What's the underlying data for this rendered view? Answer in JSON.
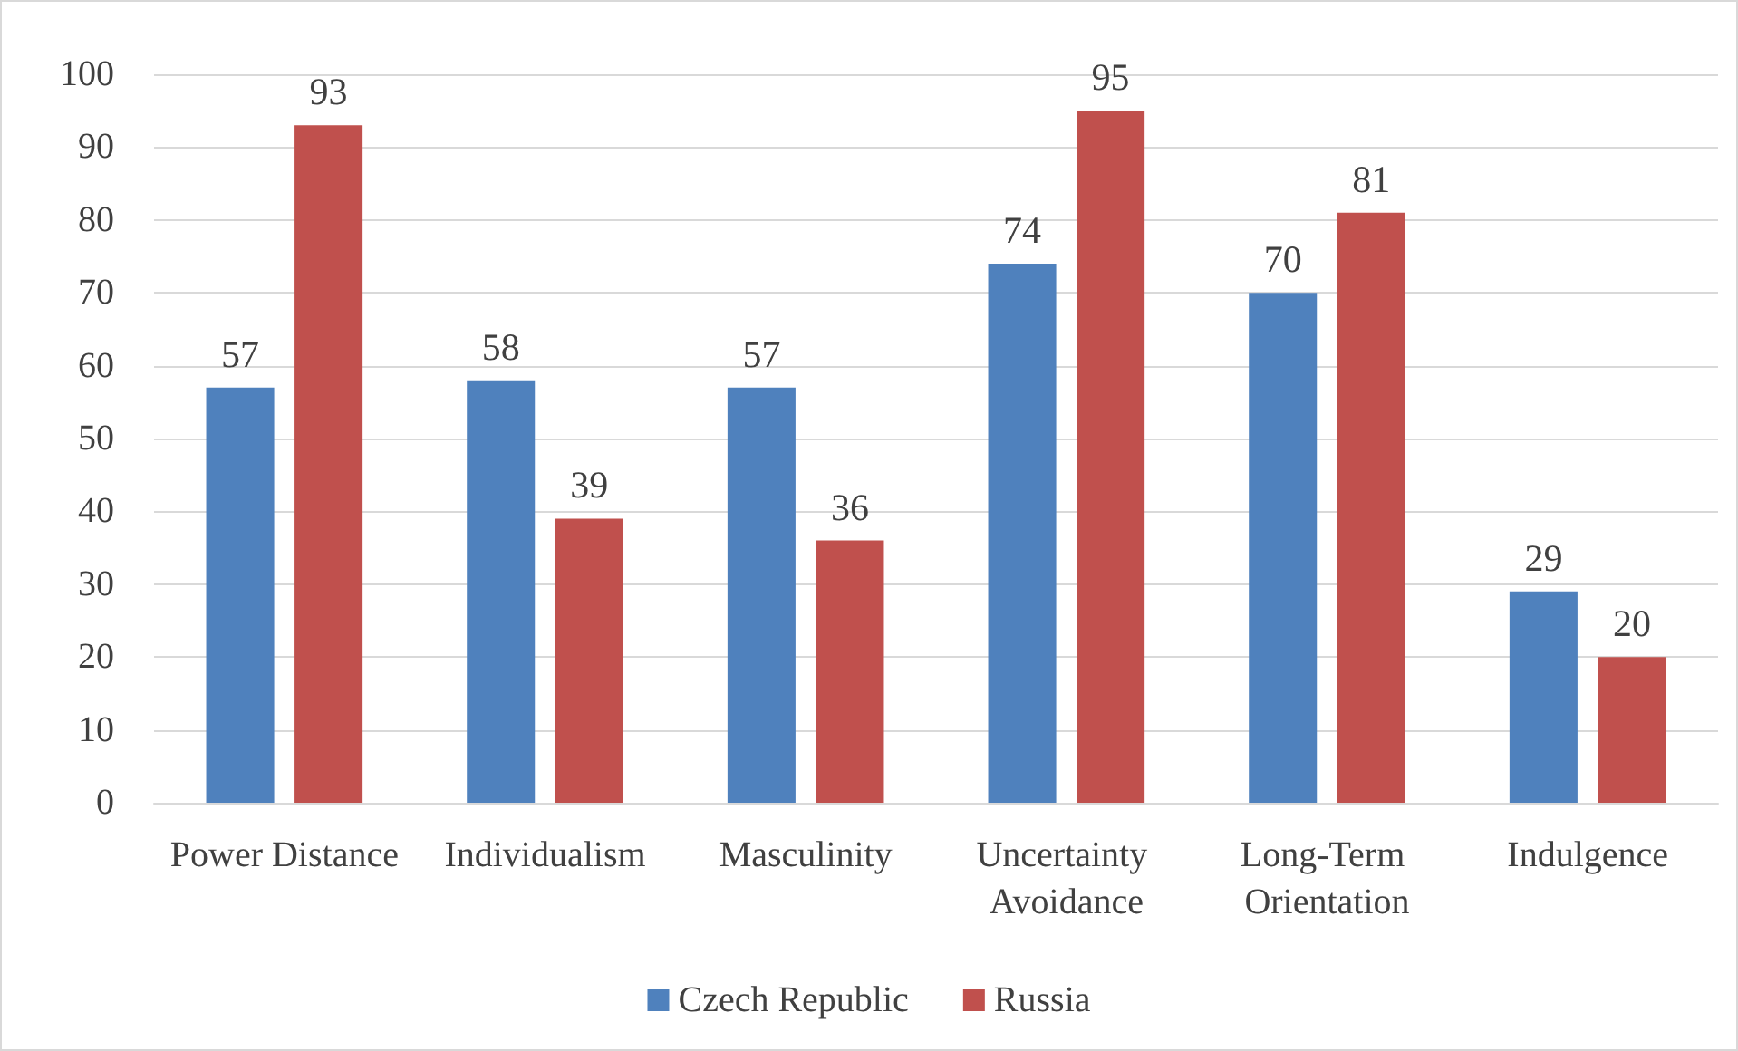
{
  "chart_data": {
    "type": "bar",
    "categories": [
      "Power Distance",
      "Individualism",
      "Masculinity",
      "Uncertainty Avoidance",
      "Long-Term Orientation",
      "Indulgence"
    ],
    "series": [
      {
        "name": "Czech Republic",
        "color": "#4f81bd",
        "values": [
          57,
          58,
          57,
          74,
          70,
          29
        ]
      },
      {
        "name": "Russia",
        "color": "#c0504d",
        "values": [
          93,
          39,
          36,
          95,
          81,
          20
        ]
      }
    ],
    "ylim": [
      0,
      100
    ],
    "yticks": [
      0,
      10,
      20,
      30,
      40,
      50,
      60,
      70,
      80,
      90,
      100
    ],
    "grid": "y",
    "legend": "bottom",
    "data_labels": true
  }
}
